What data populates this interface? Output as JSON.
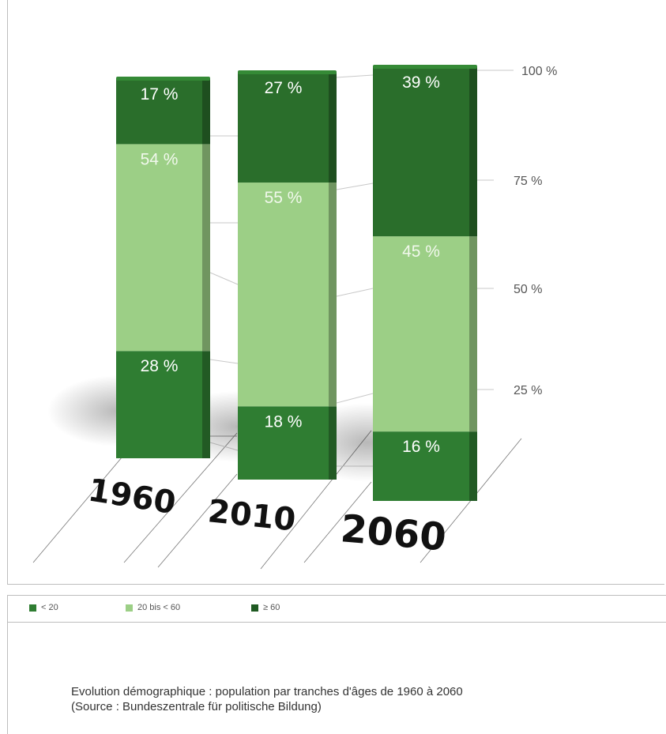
{
  "chart_data": {
    "type": "bar",
    "stacked": true,
    "percent": true,
    "categories": [
      "1960",
      "2010",
      "2060"
    ],
    "series": [
      {
        "name": "< 20",
        "values": [
          28,
          18,
          16
        ],
        "labels": [
          "28 %",
          "18 %",
          "16 %"
        ],
        "color": "#2f7d32"
      },
      {
        "name": "20 bis < 60",
        "values": [
          54,
          55,
          45
        ],
        "labels": [
          "54 %",
          "55 %",
          "45 %"
        ],
        "color": "#9ccf86"
      },
      {
        "name": "≥ 60",
        "values": [
          17,
          27,
          39
        ],
        "labels": [
          "17 %",
          "27 %",
          "39 %"
        ],
        "color": "#2a6e2b"
      }
    ],
    "ylim": [
      0,
      100
    ],
    "yticks": [
      "25 %",
      "50 %",
      "75 %",
      "100 %"
    ],
    "ytick_values": [
      25,
      50,
      75,
      100
    ]
  },
  "legend": {
    "items": [
      {
        "label": "< 20",
        "color": "#2f7d32"
      },
      {
        "label": "20 bis < 60",
        "color": "#9ccf86"
      },
      {
        "label": "≥ 60",
        "color": "#1f5a22"
      }
    ]
  },
  "caption": {
    "line1": "Evolution démographique : population par tranches d'âges de 1960 à 2060",
    "line2": "(Source : Bundeszentrale für politische Bildung)"
  }
}
